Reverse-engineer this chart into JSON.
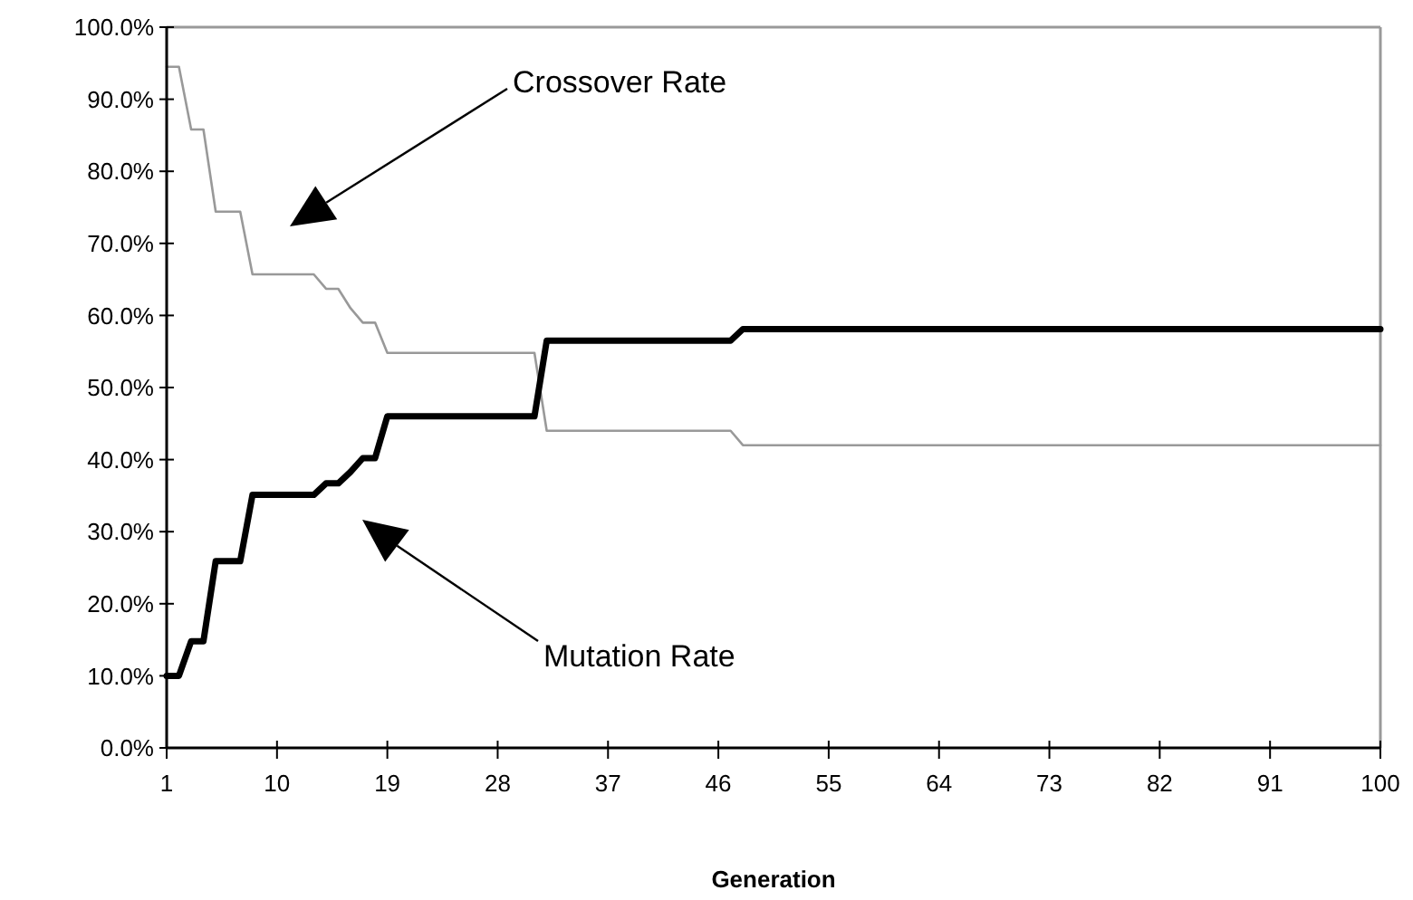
{
  "chart_data": {
    "type": "line",
    "xlabel": "Generation",
    "xlim": [
      1,
      100
    ],
    "xticks": [
      1,
      10,
      19,
      28,
      37,
      46,
      55,
      64,
      73,
      82,
      91,
      100
    ],
    "ylim": [
      0,
      100
    ],
    "yticks": [
      {
        "value": 0,
        "label": "0.0%"
      },
      {
        "value": 10,
        "label": "10.0%"
      },
      {
        "value": 20,
        "label": "20.0%"
      },
      {
        "value": 30,
        "label": "30.0%"
      },
      {
        "value": 40,
        "label": "40.0%"
      },
      {
        "value": 50,
        "label": "50.0%"
      },
      {
        "value": 60,
        "label": "60.0%"
      },
      {
        "value": 70,
        "label": "70.0%"
      },
      {
        "value": 80,
        "label": "80.0%"
      },
      {
        "value": 90,
        "label": "90.0%"
      },
      {
        "value": 100,
        "label": "100.0%"
      }
    ],
    "grid": false,
    "marker": "none",
    "line_style": "solid",
    "series": [
      {
        "color": "#999999",
        "x": [
          1,
          2,
          3,
          4,
          5,
          7,
          8,
          13,
          14,
          15,
          16,
          17,
          18,
          19,
          31,
          32,
          47,
          48,
          100
        ],
        "values": [
          94.5,
          94.5,
          85.8,
          85.8,
          74.4,
          74.4,
          65.7,
          65.7,
          63.7,
          63.7,
          61,
          59,
          59,
          54.8,
          54.8,
          44,
          44,
          42,
          42
        ]
      },
      {
        "color": "#000000",
        "x": [
          1,
          2,
          3,
          4,
          5,
          7,
          8,
          13,
          14,
          15,
          16,
          17,
          18,
          19,
          31,
          32,
          47,
          48,
          100
        ],
        "values": [
          10,
          10,
          14.8,
          14.8,
          25.9,
          25.9,
          35.1,
          35.1,
          36.7,
          36.7,
          38.3,
          40.2,
          40.2,
          46,
          46,
          56.5,
          56.5,
          58.1,
          58.1
        ]
      }
    ],
    "annotations": [
      "Crossover Rate",
      "Mutation Rate"
    ]
  }
}
